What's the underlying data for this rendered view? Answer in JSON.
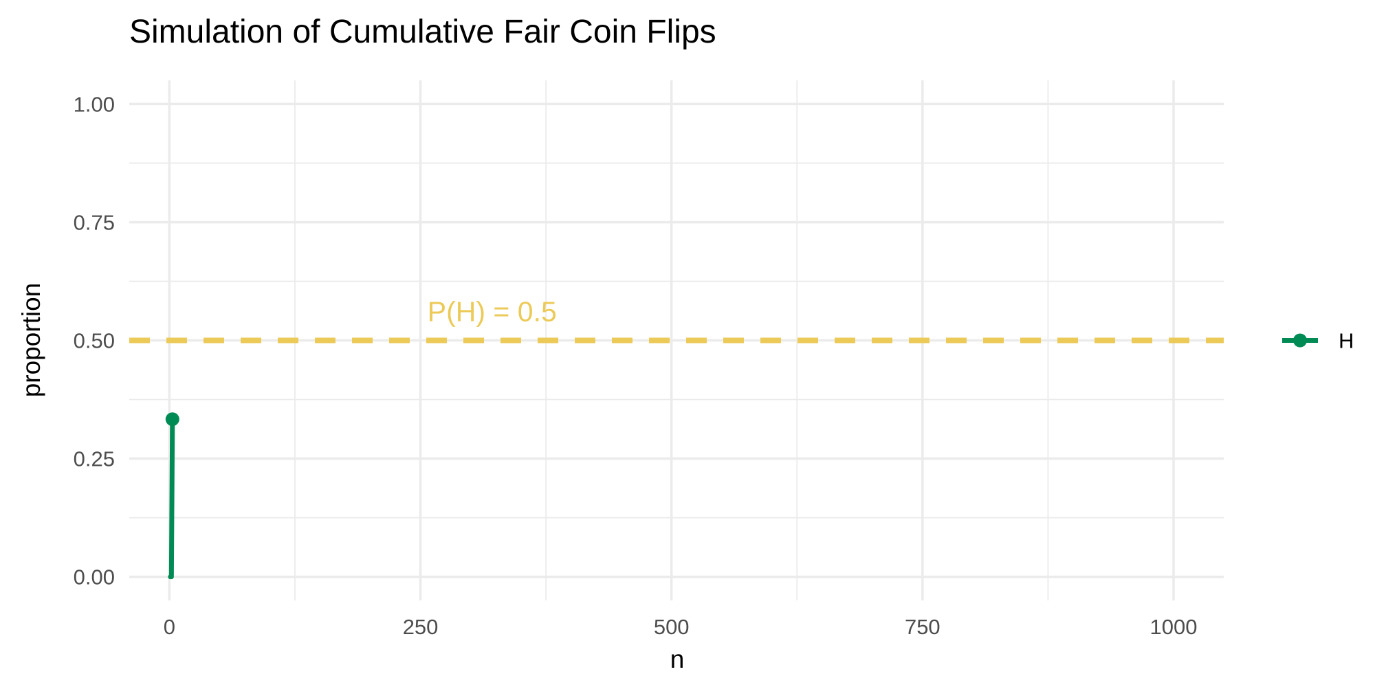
{
  "chart_data": {
    "type": "line",
    "title": "Simulation of Cumulative Fair Coin Flips",
    "xlabel": "n",
    "ylabel": "proportion",
    "xlim": [
      -40,
      1050
    ],
    "ylim": [
      -0.05,
      1.05
    ],
    "x_ticks": [
      0,
      250,
      500,
      750,
      1000
    ],
    "x_tick_labels": [
      "0",
      "250",
      "500",
      "750",
      "1000"
    ],
    "y_ticks": [
      0,
      0.25,
      0.5,
      0.75,
      1
    ],
    "y_tick_labels": [
      "0.00",
      "0.25",
      "0.50",
      "0.75",
      "1.00"
    ],
    "grid": true,
    "legend_position": "right",
    "series": [
      {
        "name": "H",
        "color": "#008b55",
        "x": [
          1,
          2,
          3
        ],
        "y": [
          0,
          0,
          0.3333
        ]
      }
    ],
    "reference_line": {
      "y": 0.5,
      "style": "dashed",
      "color": "#ecca58",
      "label": "P(H) = 0.5",
      "label_x": 257
    }
  }
}
